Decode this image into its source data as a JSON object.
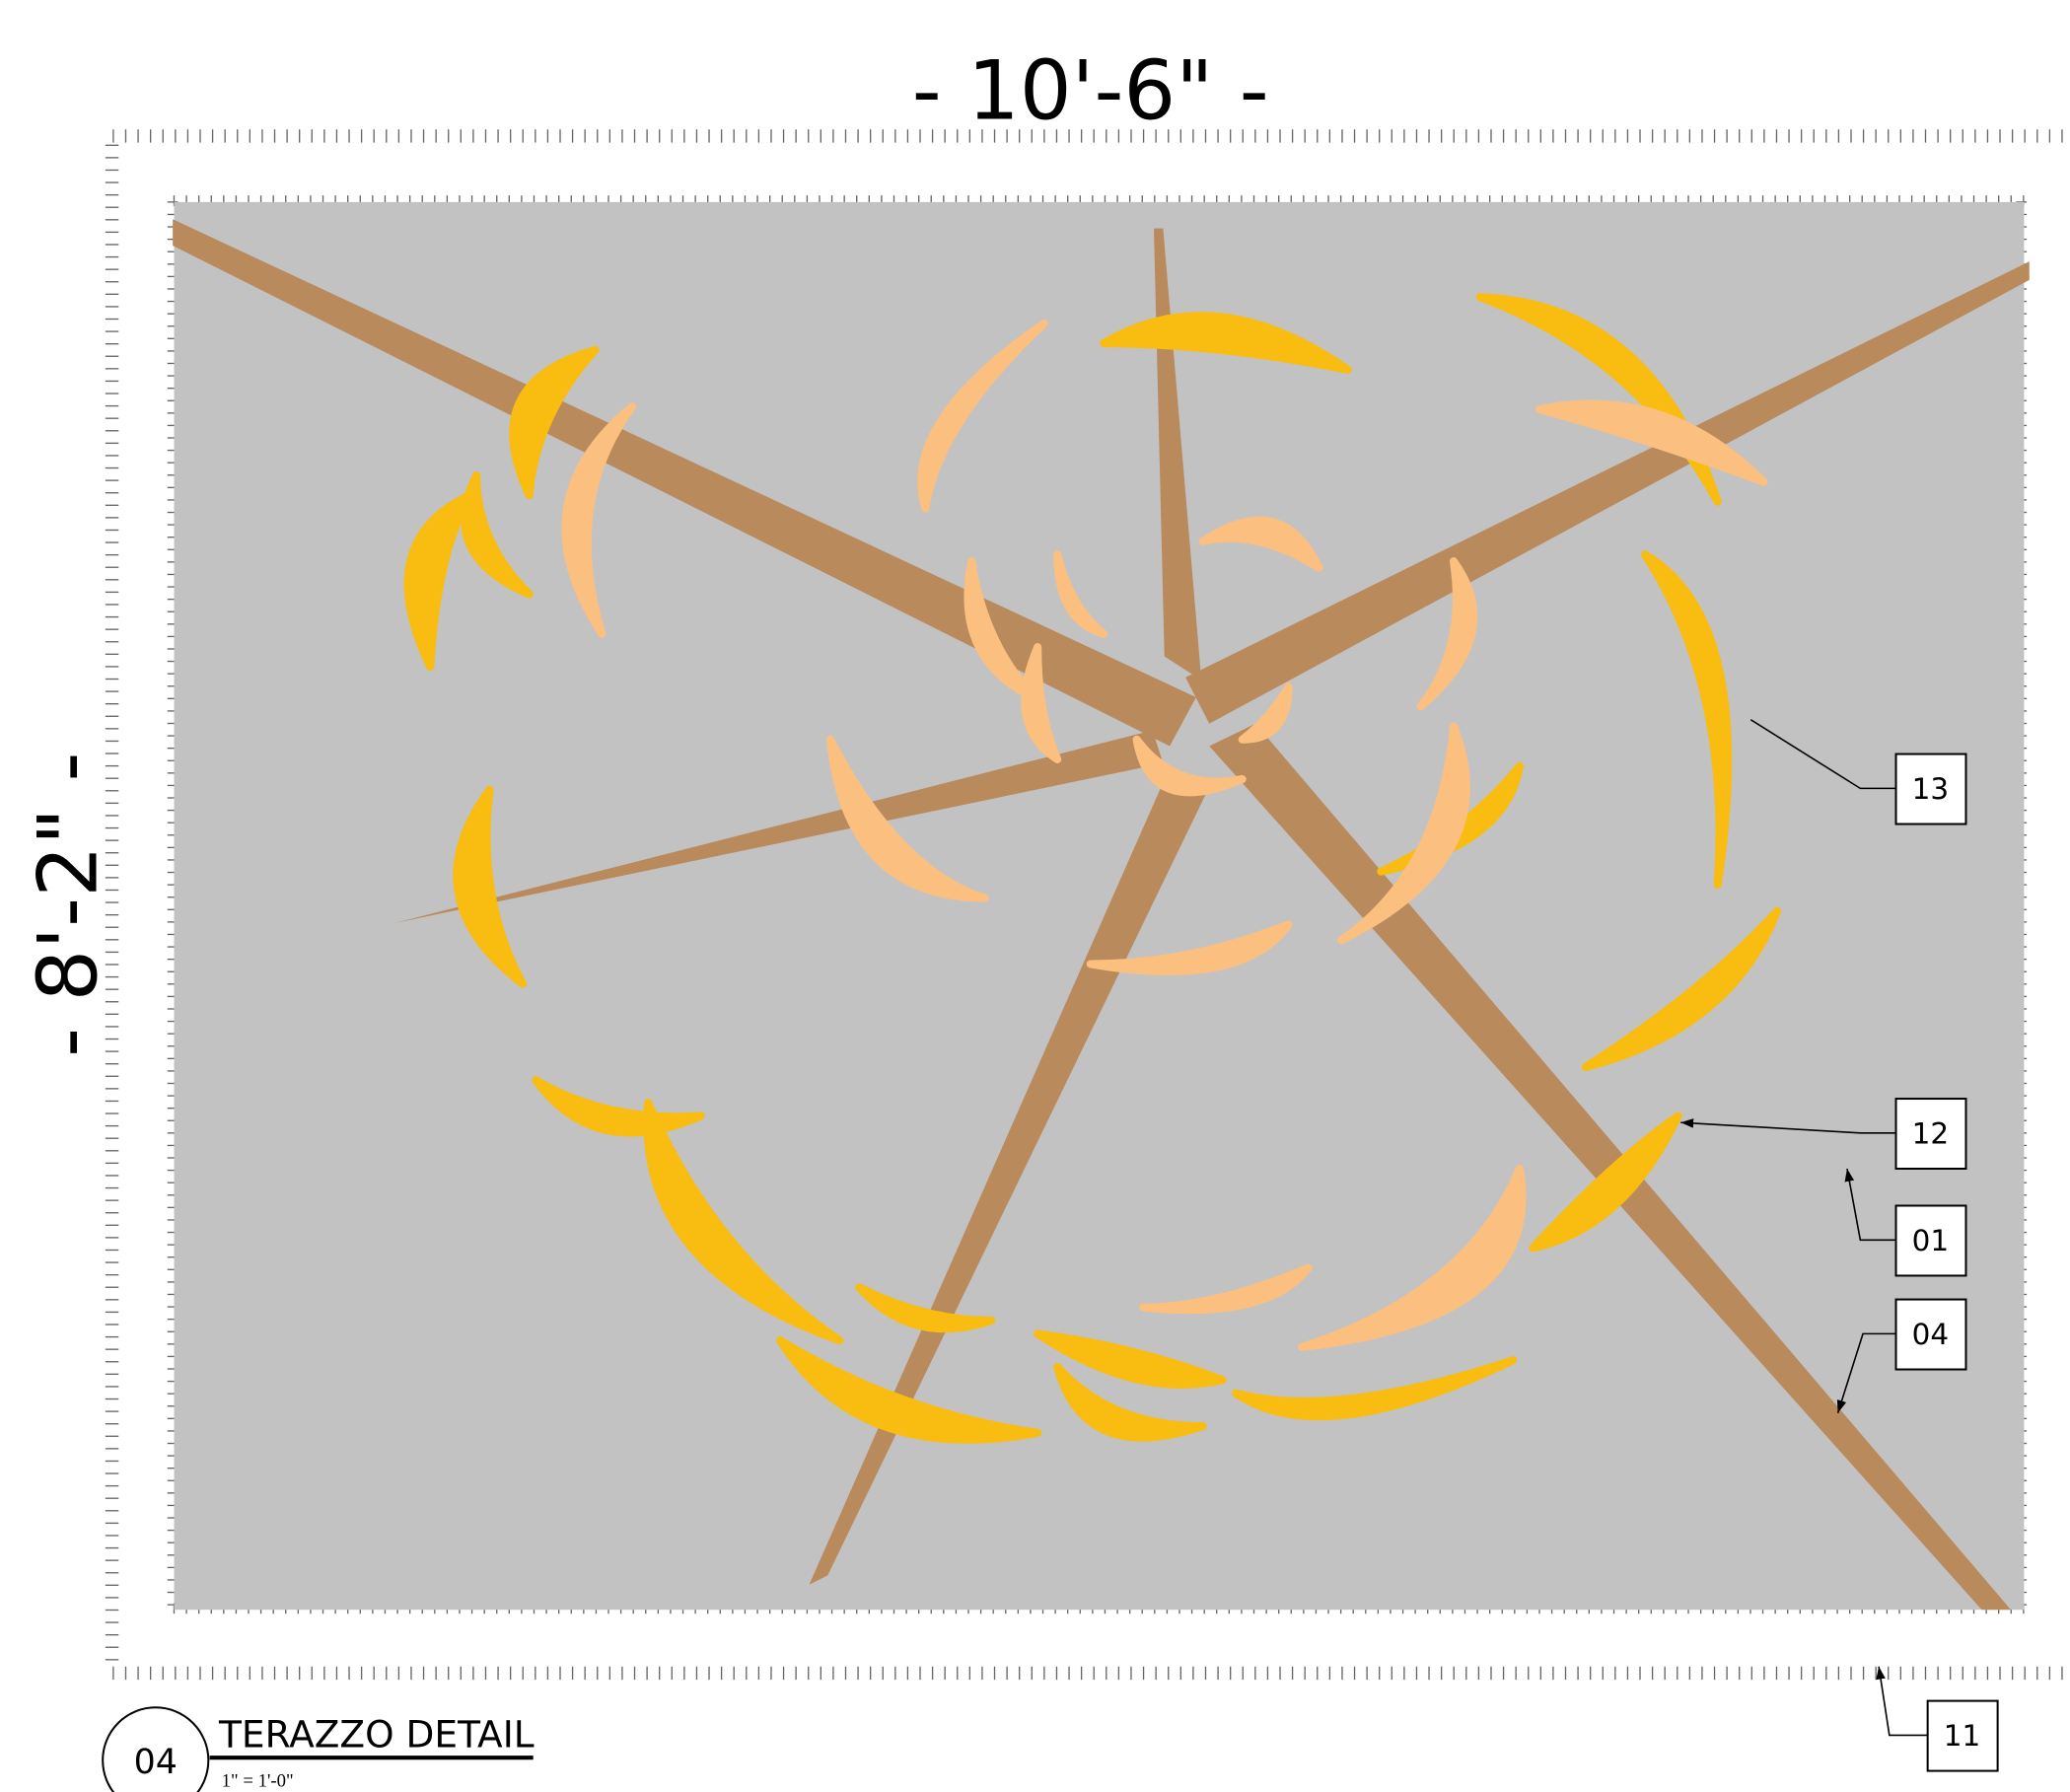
{
  "dimensions": {
    "width": "- 10'-6\" -",
    "height": "- 8'-2\" -"
  },
  "callouts": [
    "13",
    "12",
    "01",
    "04",
    "11"
  ],
  "detail": {
    "number": "04",
    "title": "TERAZZO DETAIL",
    "scale": "1\" = 1'-0\""
  }
}
